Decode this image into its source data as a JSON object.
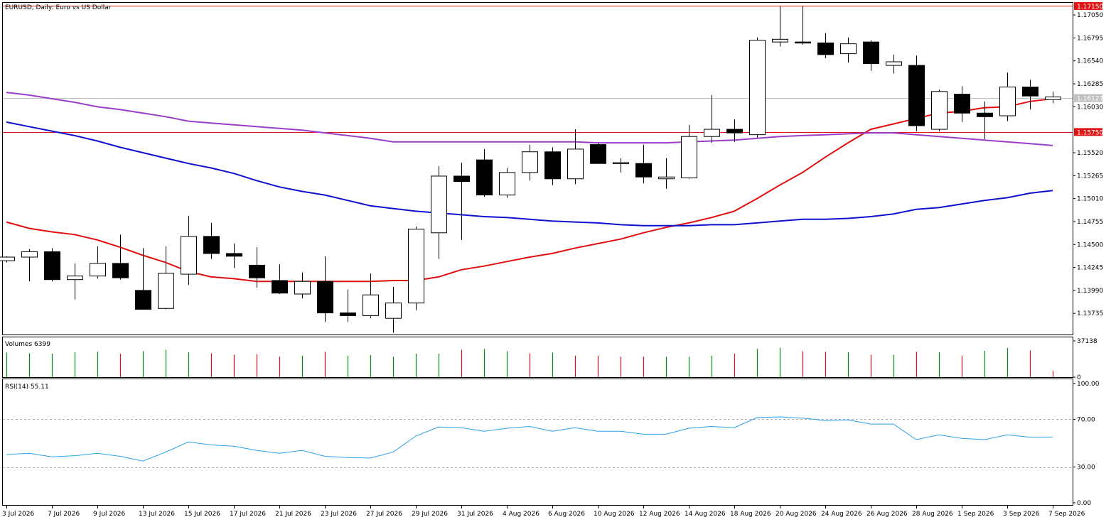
{
  "panels": {
    "main": {
      "title": "EURUSD, Daily:  Euro vs US Dollar",
      "price_ticks": [
        "1.17050",
        "1.16795",
        "1.16540",
        "1.16285",
        "1.16030",
        "1.15520",
        "1.15265",
        "1.15010",
        "1.14755",
        "1.14500",
        "1.14245",
        "1.13990",
        "1.13735"
      ],
      "price_tick_values": [
        1.1705,
        1.16795,
        1.1654,
        1.16285,
        1.1603,
        1.1552,
        1.15265,
        1.1501,
        1.14755,
        1.145,
        1.14245,
        1.1399,
        1.13735
      ],
      "levels": [
        {
          "label": "1.17150",
          "value": 1.1715,
          "color": "#e11414",
          "text_color": "#ffffff"
        },
        {
          "label": "1.15750",
          "value": 1.1575,
          "color": "#e11414",
          "text_color": "#ffffff"
        }
      ],
      "current_price": {
        "label": "1.16127",
        "value": 1.16127,
        "color": "#c0c0c0",
        "text_color": "#ffffff"
      }
    },
    "volume": {
      "title": "Volumes 6399",
      "ticks": [
        "37138",
        "0"
      ],
      "tick_values": [
        37138,
        0
      ]
    },
    "rsi": {
      "title": "RSI(14) 55.11",
      "ticks": [
        "100.00",
        "70.00",
        "30.00",
        "0.00"
      ],
      "tick_values": [
        100,
        70,
        30,
        0
      ],
      "levels": [
        70,
        30
      ]
    }
  },
  "x_axis": {
    "labels": [
      "3 Jul 2026",
      "7 Jul 2026",
      "9 Jul 2026",
      "13 Jul 2026",
      "15 Jul 2026",
      "17 Jul 2026",
      "21 Jul 2026",
      "23 Jul 2026",
      "27 Jul 2026",
      "29 Jul 2026",
      "31 Jul 2026",
      "4 Aug 2026",
      "6 Aug 2026",
      "10 Aug 2026",
      "12 Aug 2026",
      "14 Aug 2026",
      "18 Aug 2026",
      "20 Aug 2026",
      "24 Aug 2026",
      "26 Aug 2026",
      "28 Aug 2026",
      "1 Sep 2026",
      "3 Sep 2026",
      "7 Sep 2026"
    ],
    "label_bar_index": [
      0,
      2,
      4,
      6,
      8,
      10,
      12,
      14,
      16,
      18,
      20,
      22,
      24,
      26,
      28,
      30,
      32,
      34,
      36,
      38,
      40,
      42,
      44,
      46
    ]
  },
  "chart_data": {
    "type": "candlestick",
    "title": "EURUSD, Daily:  Euro vs US Dollar",
    "series": [
      {
        "name": "EURUSD",
        "kind": "ohlc",
        "ohlc": [
          [
            1.1432,
            1.1437,
            1.143,
            1.1436
          ],
          [
            1.1436,
            1.1445,
            1.1409,
            1.1442
          ],
          [
            1.1442,
            1.1446,
            1.1409,
            1.1411
          ],
          [
            1.1411,
            1.1429,
            1.1389,
            1.1415
          ],
          [
            1.1415,
            1.1448,
            1.1412,
            1.1429
          ],
          [
            1.1429,
            1.1461,
            1.1411,
            1.1413
          ],
          [
            1.1399,
            1.1446,
            1.1378,
            1.1378
          ],
          [
            1.1379,
            1.1448,
            1.1378,
            1.1418
          ],
          [
            1.1417,
            1.1482,
            1.1405,
            1.1459
          ],
          [
            1.1459,
            1.1474,
            1.1434,
            1.144
          ],
          [
            1.144,
            1.1451,
            1.1424,
            1.1437
          ],
          [
            1.1427,
            1.1447,
            1.1402,
            1.1413
          ],
          [
            1.141,
            1.1428,
            1.1395,
            1.1396
          ],
          [
            1.1395,
            1.1419,
            1.139,
            1.1409
          ],
          [
            1.1409,
            1.1437,
            1.1364,
            1.1374
          ],
          [
            1.1374,
            1.14,
            1.1364,
            1.1371
          ],
          [
            1.1371,
            1.1418,
            1.1368,
            1.1394
          ],
          [
            1.1368,
            1.1403,
            1.1352,
            1.1385
          ],
          [
            1.1385,
            1.147,
            1.1377,
            1.1467
          ],
          [
            1.1463,
            1.1537,
            1.1434,
            1.1526
          ],
          [
            1.1526,
            1.1541,
            1.1455,
            1.152
          ],
          [
            1.1544,
            1.1556,
            1.1503,
            1.1505
          ],
          [
            1.1505,
            1.1535,
            1.1502,
            1.153
          ],
          [
            1.153,
            1.1561,
            1.1521,
            1.1553
          ],
          [
            1.1553,
            1.1558,
            1.1516,
            1.1523
          ],
          [
            1.1523,
            1.1578,
            1.1517,
            1.1556
          ],
          [
            1.1561,
            1.1563,
            1.1542,
            1.154
          ],
          [
            1.154,
            1.1546,
            1.153,
            1.1541
          ],
          [
            1.154,
            1.1561,
            1.1518,
            1.1525
          ],
          [
            1.1523,
            1.1546,
            1.1512,
            1.1525
          ],
          [
            1.1524,
            1.1583,
            1.1523,
            1.157
          ],
          [
            1.157,
            1.1616,
            1.1563,
            1.1578
          ],
          [
            1.1578,
            1.1589,
            1.1564,
            1.1574
          ],
          [
            1.1572,
            1.168,
            1.1569,
            1.1677
          ],
          [
            1.1675,
            1.1715,
            1.167,
            1.1678
          ],
          [
            1.1675,
            1.1715,
            1.1672,
            1.1674
          ],
          [
            1.1674,
            1.1685,
            1.1657,
            1.1661
          ],
          [
            1.1662,
            1.168,
            1.1652,
            1.1673
          ],
          [
            1.1675,
            1.1677,
            1.1643,
            1.1651
          ],
          [
            1.1649,
            1.1661,
            1.164,
            1.1653
          ],
          [
            1.1649,
            1.166,
            1.1576,
            1.1582
          ],
          [
            1.1578,
            1.1622,
            1.1576,
            1.162
          ],
          [
            1.1617,
            1.1626,
            1.1586,
            1.1596
          ],
          [
            1.1596,
            1.1609,
            1.1567,
            1.1592
          ],
          [
            1.1593,
            1.1641,
            1.1587,
            1.1625
          ],
          [
            1.1625,
            1.1633,
            1.16,
            1.1615
          ],
          [
            1.1611,
            1.162,
            1.1607,
            1.1614
          ]
        ]
      },
      {
        "name": "MA-red",
        "kind": "line",
        "color": "#e01010",
        "values": [
          1.1475,
          1.1468,
          1.1464,
          1.1461,
          1.1455,
          1.1447,
          1.1438,
          1.143,
          1.142,
          1.1414,
          1.1412,
          1.1409,
          1.1409,
          1.1409,
          1.1409,
          1.1409,
          1.1409,
          1.141,
          1.141,
          1.1414,
          1.1422,
          1.1426,
          1.1431,
          1.1436,
          1.144,
          1.1446,
          1.1451,
          1.1456,
          1.1463,
          1.1469,
          1.1474,
          1.148,
          1.1487,
          1.1501,
          1.1516,
          1.153,
          1.1547,
          1.1563,
          1.1578,
          1.1584,
          1.159,
          1.1596,
          1.1598,
          1.1602,
          1.1603,
          1.1609,
          1.1612
        ]
      },
      {
        "name": "MA-blue",
        "kind": "line",
        "color": "#1010d0",
        "values": [
          1.1586,
          1.1581,
          1.1576,
          1.1571,
          1.1565,
          1.1558,
          1.1552,
          1.1546,
          1.154,
          1.1535,
          1.1529,
          1.1521,
          1.1514,
          1.1509,
          1.1505,
          1.1499,
          1.1493,
          1.149,
          1.1487,
          1.1485,
          1.1483,
          1.1481,
          1.148,
          1.1478,
          1.1476,
          1.1475,
          1.1474,
          1.1472,
          1.1471,
          1.1471,
          1.1471,
          1.1472,
          1.1472,
          1.1474,
          1.1476,
          1.1478,
          1.1478,
          1.1479,
          1.1481,
          1.1484,
          1.1489,
          1.1491,
          1.1495,
          1.1499,
          1.1502,
          1.1507,
          1.151
        ]
      },
      {
        "name": "MA-purple",
        "kind": "line",
        "color": "#9a3dc8",
        "values": [
          1.1619,
          1.1616,
          1.1612,
          1.1608,
          1.1603,
          1.16,
          1.1596,
          1.1592,
          1.1587,
          1.1585,
          1.1583,
          1.1581,
          1.1579,
          1.1577,
          1.1574,
          1.1571,
          1.1568,
          1.1564,
          1.1564,
          1.1564,
          1.1564,
          1.1564,
          1.1564,
          1.1564,
          1.1564,
          1.1564,
          1.1563,
          1.1563,
          1.1563,
          1.1563,
          1.1564,
          1.1565,
          1.1566,
          1.1568,
          1.157,
          1.1571,
          1.1572,
          1.1573,
          1.1574,
          1.1574,
          1.1572,
          1.157,
          1.1568,
          1.1566,
          1.1564,
          1.1562,
          1.156
        ]
      }
    ],
    "volumes": [
      25000,
      24500,
      24000,
      25500,
      26000,
      24000,
      26500,
      28000,
      25500,
      24500,
      23000,
      23500,
      21000,
      22000,
      26000,
      22000,
      22500,
      21000,
      24000,
      24000,
      28000,
      29000,
      26500,
      24500,
      25000,
      22000,
      22000,
      21000,
      21000,
      21000,
      21000,
      22000,
      24000,
      29000,
      30000,
      26500,
      26000,
      25500,
      23000,
      23000,
      26000,
      25500,
      22000,
      27000,
      30000,
      27500,
      6399
    ],
    "volume_up": [
      true,
      true,
      true,
      true,
      true,
      false,
      true,
      true,
      true,
      false,
      false,
      false,
      false,
      true,
      false,
      true,
      true,
      true,
      true,
      true,
      false,
      true,
      true,
      false,
      true,
      false,
      false,
      false,
      false,
      true,
      true,
      true,
      false,
      true,
      true,
      false,
      false,
      true,
      false,
      true,
      false,
      true,
      false,
      true,
      true,
      false,
      false
    ],
    "rsi": [
      40.5,
      41.5,
      38.5,
      39.5,
      41.5,
      39.0,
      35.0,
      42.5,
      51.0,
      48.5,
      47.5,
      44.0,
      41.5,
      44.0,
      39.0,
      38.0,
      37.5,
      42.5,
      56.0,
      63.5,
      63.0,
      60.0,
      62.5,
      64.0,
      60.0,
      63.0,
      60.0,
      60.0,
      57.5,
      57.5,
      62.5,
      64.0,
      63.0,
      71.5,
      72.0,
      71.0,
      69.0,
      69.5,
      66.0,
      66.0,
      53.0,
      57.0,
      54.0,
      53.0,
      57.0,
      55.0,
      55.11
    ],
    "ylim_price": [
      1.135,
      1.17185
    ],
    "ylim_volume": [
      0,
      37138
    ],
    "ylim_rsi": [
      0,
      100
    ],
    "grid": false
  }
}
